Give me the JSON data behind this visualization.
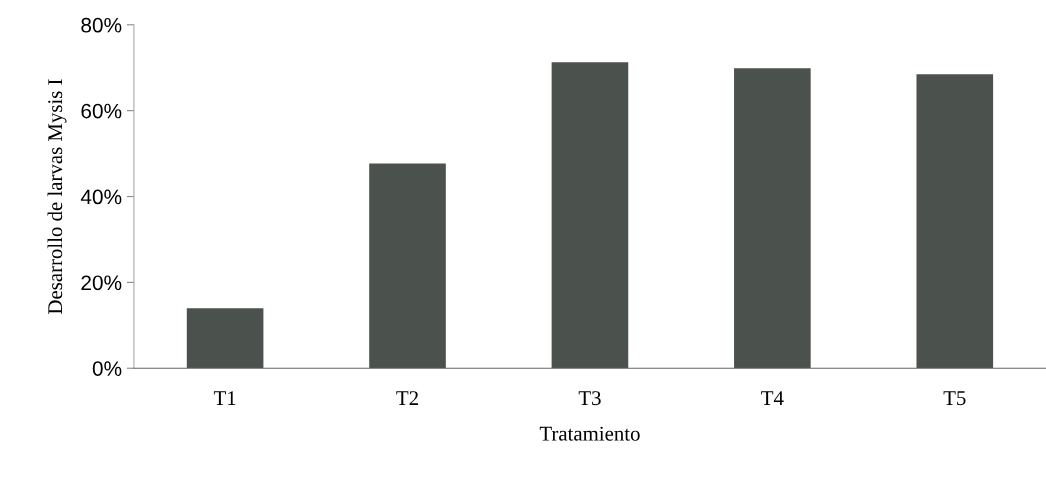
{
  "chart_data": {
    "type": "bar",
    "xlabel": "Tratamiento",
    "ylabel": "Desarrollo de larvas Mysis I",
    "categories": [
      "T1",
      "T2",
      "T3",
      "T4",
      "T5"
    ],
    "values": [
      14.0,
      47.7,
      71.3,
      69.9,
      68.5
    ],
    "color": "#4b514d",
    "ylim": [
      0,
      80
    ],
    "yticks": [
      {
        "value": 0,
        "label": "0%"
      },
      {
        "value": 20,
        "label": "20%"
      },
      {
        "value": 40,
        "label": "40%"
      },
      {
        "value": 60,
        "label": "60%"
      },
      {
        "value": 80,
        "label": "80%"
      }
    ],
    "grid": false,
    "legend": false
  }
}
